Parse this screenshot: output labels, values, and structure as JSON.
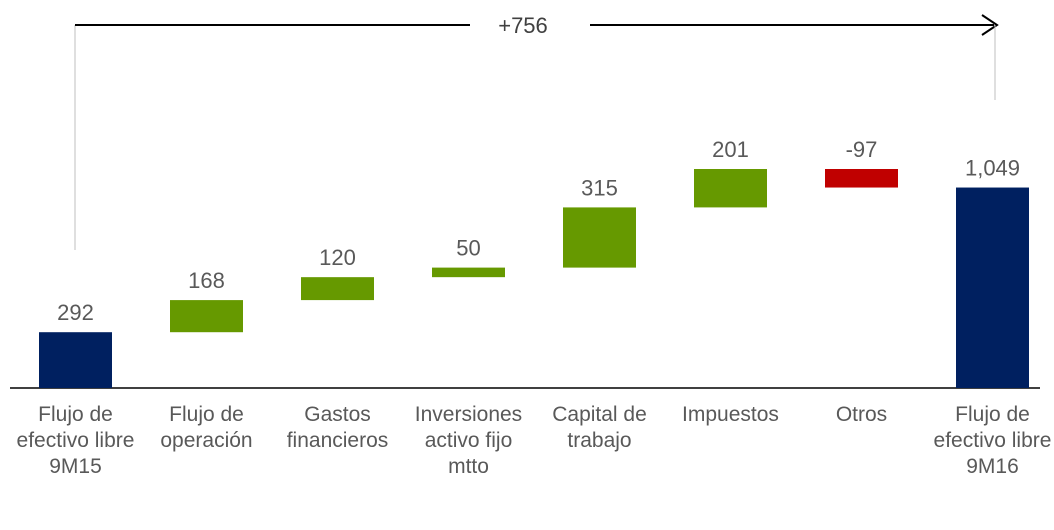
{
  "chart_data": {
    "type": "waterfall",
    "categories": [
      "Flujo de efectivo libre 9M15",
      "Flujo de operación",
      "Gastos financieros",
      "Inversiones activo fijo mtto",
      "Capital de trabajo",
      "Impuestos",
      "Otros",
      "Flujo de efectivo libre 9M16"
    ],
    "values": [
      292,
      168,
      120,
      50,
      315,
      201,
      -97,
      1049
    ],
    "value_labels": [
      "292",
      "168",
      "120",
      "50",
      "315",
      "201",
      "-97",
      "1,049"
    ],
    "measures": [
      "absolute",
      "relative",
      "relative",
      "relative",
      "relative",
      "relative",
      "relative",
      "total"
    ],
    "total_color": "#002060",
    "increase_color": "#669900",
    "decrease_color": "#c00000",
    "annotation": "+756"
  }
}
